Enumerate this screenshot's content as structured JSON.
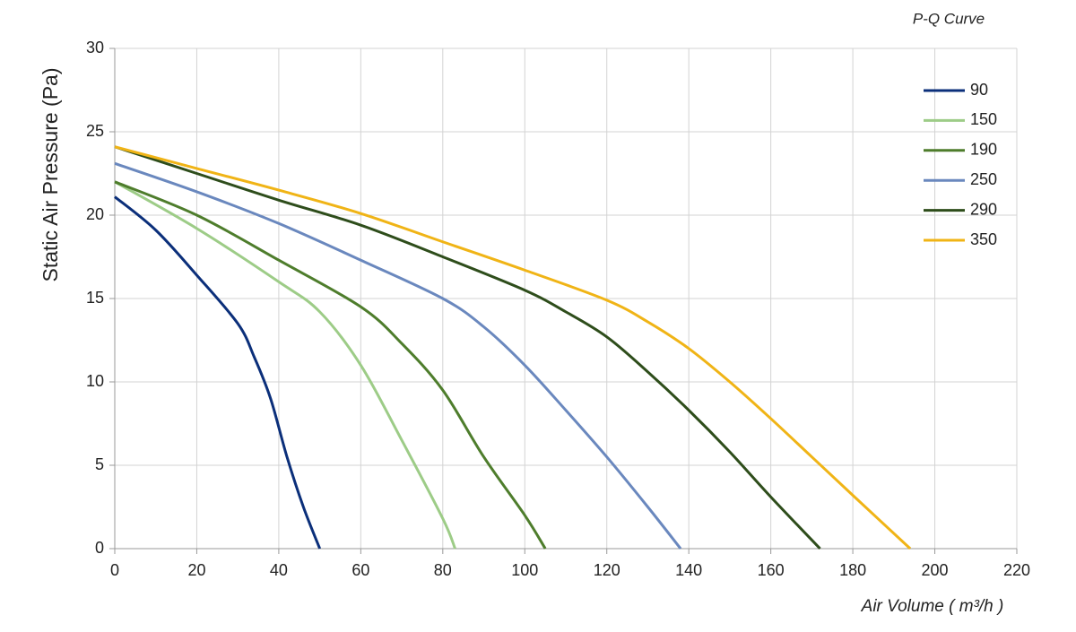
{
  "chart_data": {
    "type": "line",
    "title": "P-Q Curve",
    "xlabel": "Air Volume ( m³/h )",
    "ylabel": "Static Air Pressure  (Pa)",
    "xlim": [
      0,
      220
    ],
    "xticks": [
      0,
      20,
      40,
      60,
      80,
      100,
      120,
      140,
      160,
      180,
      200,
      220
    ],
    "ylim": [
      0,
      30
    ],
    "yticks": [
      0,
      5,
      10,
      15,
      20,
      25,
      30
    ],
    "grid": true,
    "legend": "right",
    "series": [
      {
        "name": "90",
        "color": "#0b2f7a",
        "x": [
          0,
          10,
          20,
          30,
          34,
          38,
          42,
          46,
          50
        ],
        "values": [
          21.1,
          19.1,
          16.4,
          13.5,
          11.5,
          9,
          5.5,
          2.5,
          0
        ]
      },
      {
        "name": "150",
        "color": "#9dcc87",
        "x": [
          0,
          20,
          40,
          50,
          60,
          70,
          80,
          83
        ],
        "values": [
          22,
          19.2,
          16,
          14.2,
          11,
          6.5,
          1.8,
          0
        ]
      },
      {
        "name": "190",
        "color": "#4e7d2c",
        "x": [
          0,
          20,
          40,
          60,
          70,
          80,
          90,
          100,
          105
        ],
        "values": [
          22,
          20,
          17.3,
          14.5,
          12.3,
          9.5,
          5.5,
          2,
          0
        ]
      },
      {
        "name": "250",
        "color": "#6a88be",
        "x": [
          0,
          20,
          40,
          60,
          80,
          90,
          100,
          110,
          120,
          130,
          138
        ],
        "values": [
          23.1,
          21.4,
          19.5,
          17.3,
          15,
          13.3,
          11,
          8.3,
          5.5,
          2.5,
          0
        ]
      },
      {
        "name": "290",
        "color": "#2e4d1b",
        "x": [
          0,
          20,
          40,
          60,
          80,
          100,
          110,
          120,
          130,
          140,
          150,
          160,
          172
        ],
        "values": [
          24.1,
          22.5,
          20.9,
          19.4,
          17.5,
          15.5,
          14.2,
          12.7,
          10.6,
          8.3,
          5.8,
          3.1,
          0
        ]
      },
      {
        "name": "350",
        "color": "#f0b416",
        "x": [
          0,
          20,
          40,
          60,
          80,
          100,
          120,
          130,
          140,
          150,
          160,
          170,
          180,
          194
        ],
        "values": [
          24.1,
          22.8,
          21.5,
          20.1,
          18.4,
          16.7,
          14.9,
          13.6,
          12,
          10,
          7.8,
          5.5,
          3.2,
          0
        ]
      }
    ]
  }
}
